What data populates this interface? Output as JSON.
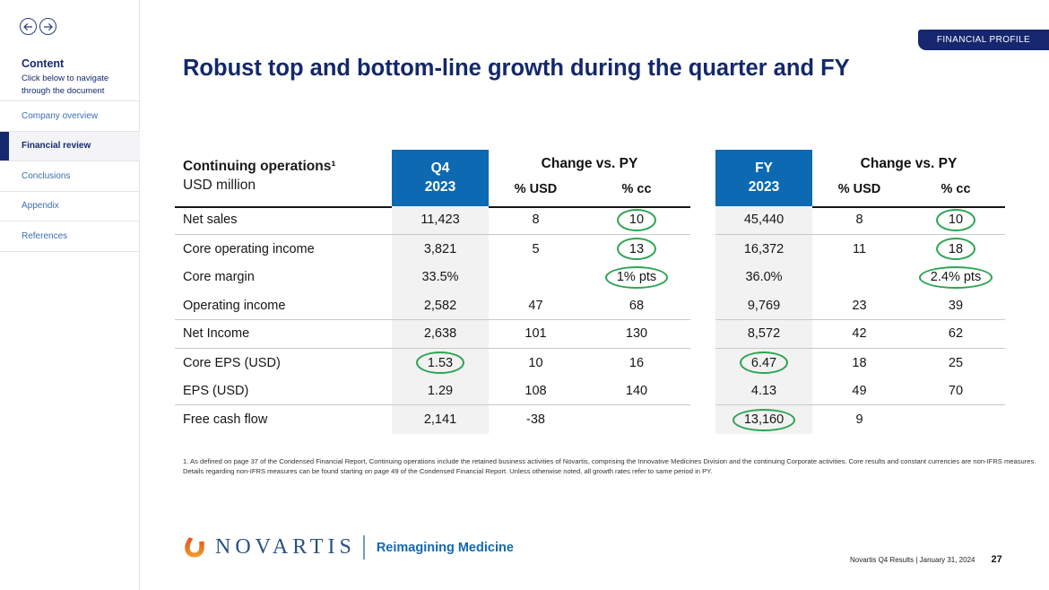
{
  "sidebar": {
    "heading": "Content",
    "subheading": "Click below to navigate through the document",
    "items": [
      {
        "label": "Company overview",
        "active": false
      },
      {
        "label": "Financial review",
        "active": true
      },
      {
        "label": "Conclusions",
        "active": false
      },
      {
        "label": "Appendix",
        "active": false
      },
      {
        "label": "References",
        "active": false
      }
    ]
  },
  "header": {
    "badge": "FINANCIAL PROFILE",
    "title": "Robust top and bottom-line growth during the quarter and FY"
  },
  "table": {
    "corner": {
      "title": "Continuing operations¹",
      "subtitle": "USD million"
    },
    "q4_box": {
      "line1": "Q4",
      "line2": "2023"
    },
    "fy_box": {
      "line1": "FY",
      "line2": "2023"
    },
    "change_vs_py": "Change vs. PY",
    "pct_usd": "% USD",
    "pct_cc": "% cc",
    "rows": [
      {
        "label": "Net sales",
        "q4": {
          "v": "11,423",
          "circled": false
        },
        "q4_usd": {
          "v": "8",
          "circled": false
        },
        "q4_cc": {
          "v": "10",
          "circled": true
        },
        "fy": {
          "v": "45,440",
          "circled": false
        },
        "fy_usd": {
          "v": "8",
          "circled": false
        },
        "fy_cc": {
          "v": "10",
          "circled": true
        },
        "separator_below": true
      },
      {
        "label": "Core operating income",
        "q4": {
          "v": "3,821",
          "circled": false
        },
        "q4_usd": {
          "v": "5",
          "circled": false
        },
        "q4_cc": {
          "v": "13",
          "circled": true
        },
        "fy": {
          "v": "16,372",
          "circled": false
        },
        "fy_usd": {
          "v": "11",
          "circled": false
        },
        "fy_cc": {
          "v": "18",
          "circled": true
        },
        "separator_below": false
      },
      {
        "label": "Core margin",
        "q4": {
          "v": "33.5%",
          "circled": false
        },
        "q4_usd": {
          "v": "",
          "circled": false
        },
        "q4_cc": {
          "v": "1% pts",
          "circled": true
        },
        "fy": {
          "v": "36.0%",
          "circled": false
        },
        "fy_usd": {
          "v": "",
          "circled": false
        },
        "fy_cc": {
          "v": "2.4% pts",
          "circled": true
        },
        "separator_below": false
      },
      {
        "label": "Operating income",
        "q4": {
          "v": "2,582",
          "circled": false
        },
        "q4_usd": {
          "v": "47",
          "circled": false
        },
        "q4_cc": {
          "v": "68",
          "circled": false
        },
        "fy": {
          "v": "9,769",
          "circled": false
        },
        "fy_usd": {
          "v": "23",
          "circled": false
        },
        "fy_cc": {
          "v": "39",
          "circled": false
        },
        "separator_below": true
      },
      {
        "label": "Net Income",
        "q4": {
          "v": "2,638",
          "circled": false
        },
        "q4_usd": {
          "v": "101",
          "circled": false
        },
        "q4_cc": {
          "v": "130",
          "circled": false
        },
        "fy": {
          "v": "8,572",
          "circled": false
        },
        "fy_usd": {
          "v": "42",
          "circled": false
        },
        "fy_cc": {
          "v": "62",
          "circled": false
        },
        "separator_below": true
      },
      {
        "label": "Core EPS (USD)",
        "q4": {
          "v": "1.53",
          "circled": true
        },
        "q4_usd": {
          "v": "10",
          "circled": false
        },
        "q4_cc": {
          "v": "16",
          "circled": false
        },
        "fy": {
          "v": "6.47",
          "circled": true
        },
        "fy_usd": {
          "v": "18",
          "circled": false
        },
        "fy_cc": {
          "v": "25",
          "circled": false
        },
        "separator_below": false
      },
      {
        "label": "EPS (USD)",
        "q4": {
          "v": "1.29",
          "circled": false
        },
        "q4_usd": {
          "v": "108",
          "circled": false
        },
        "q4_cc": {
          "v": "140",
          "circled": false
        },
        "fy": {
          "v": "4.13",
          "circled": false
        },
        "fy_usd": {
          "v": "49",
          "circled": false
        },
        "fy_cc": {
          "v": "70",
          "circled": false
        },
        "separator_below": true
      },
      {
        "label": "Free cash flow",
        "q4": {
          "v": "2,141",
          "circled": false
        },
        "q4_usd": {
          "v": "-38",
          "circled": false
        },
        "q4_cc": {
          "v": "",
          "circled": false
        },
        "fy": {
          "v": "13,160",
          "circled": true
        },
        "fy_usd": {
          "v": "9",
          "circled": false
        },
        "fy_cc": {
          "v": "",
          "circled": false
        },
        "separator_below": false
      }
    ]
  },
  "footnote": "1. As defined on page 37 of the Condensed Financial Report, Continuing operations include the retained business activities of Novartis, comprising the Innovative Medicines Division and the continuing Corporate activities. Core results and constant currencies are non-IFRS measures. Details regarding non-IFRS measures can be found starting on page 49 of the Condensed Financial Report.    Unless otherwise noted, all growth rates refer to same period in PY.",
  "footer": {
    "brand": "NOVARTIS",
    "tagline": "Reimagining Medicine",
    "note": "Novartis Q4 Results | January 31, 2024",
    "page_number": "27"
  },
  "colors": {
    "navy": "#152a6e",
    "novartis_blue": "#0e69b3",
    "link_blue": "#3d6eb4",
    "highlight_green": "#2aa551"
  }
}
